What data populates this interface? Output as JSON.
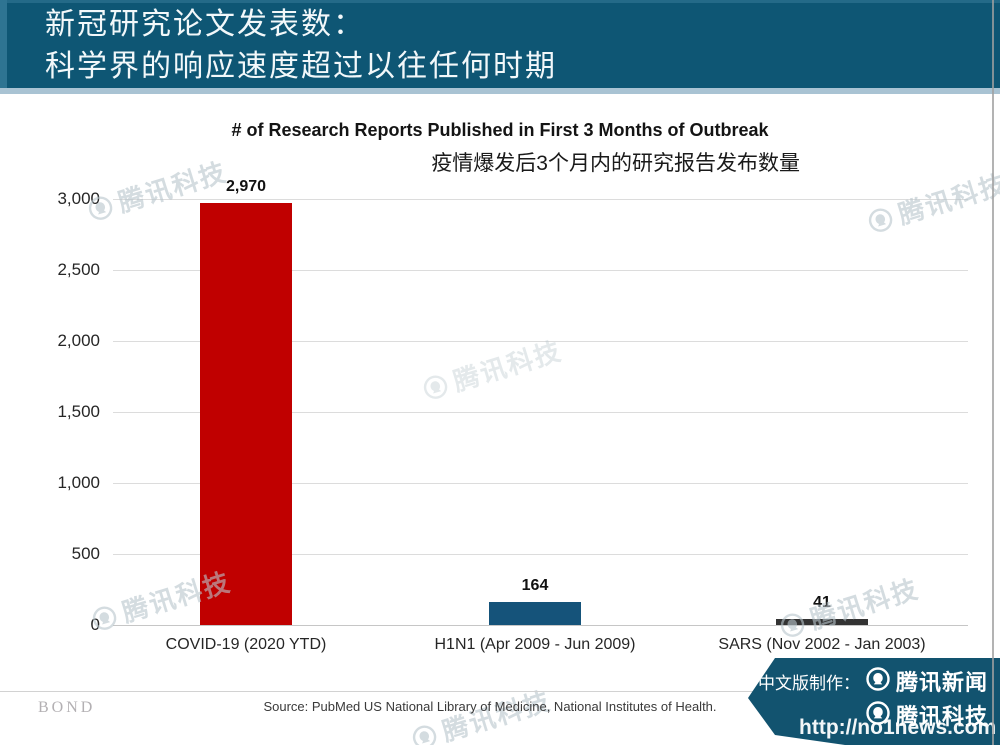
{
  "header": {
    "title_line1": "新冠研究论文发表数：",
    "title_line2": "科学界的响应速度超过以往任何时期"
  },
  "chart_data": {
    "type": "bar",
    "title": "# of Research Reports Published in First 3 Months of Outbreak",
    "subtitle_zh": "疫情爆发后3个月内的研究报告发布数量",
    "categories": [
      "COVID-19 (2020 YTD)",
      "H1N1 (Apr 2009 - Jun 2009)",
      "SARS (Nov 2002 - Jan 2003)"
    ],
    "values": [
      2970,
      164,
      41
    ],
    "value_labels": [
      "2,970",
      "164",
      "41"
    ],
    "bar_colors": [
      "#c00000",
      "#15537a",
      "#333333"
    ],
    "xlabel": "",
    "ylabel": "",
    "ylim": [
      0,
      3000
    ],
    "ytick_interval": 500,
    "ytick_labels": [
      "0",
      "500",
      "1,000",
      "1,500",
      "2,000",
      "2,500",
      "3,000"
    ],
    "grid": true,
    "legend": null
  },
  "watermark": {
    "text": "腾讯科技"
  },
  "footer": {
    "brand": "BOND",
    "source": "Source: PubMed US National Library of Medicine, National Institutes of Health.",
    "ribbon": {
      "prefix": "中文版制作：",
      "brand_line1": "腾讯新闻",
      "brand_line2": "腾讯科技",
      "url_watermark": "http://no1news.com"
    }
  },
  "colors": {
    "header_bg": "#0e5674",
    "header_accent": "#2e7492",
    "header_underline": "#a9c3d3",
    "ribbon_bg": "#12536f",
    "bar_covid": "#c00000",
    "bar_h1n1": "#15537a",
    "bar_sars": "#333333"
  }
}
